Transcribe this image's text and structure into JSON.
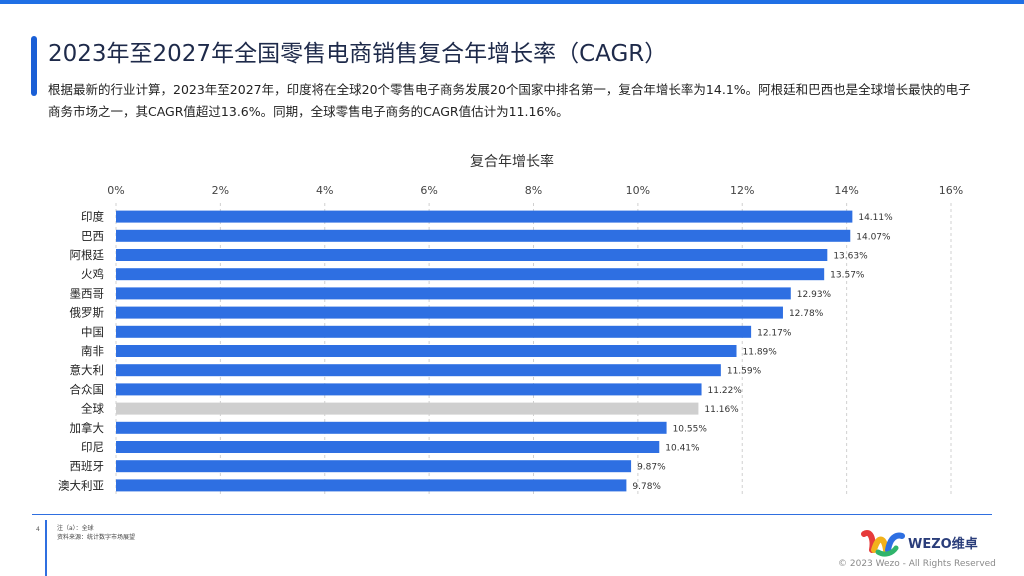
{
  "header": {
    "title": "2023年至2027年全国零售电商销售复合年增长率（CAGR）",
    "description": "根据最新的行业计算，2023年至2027年，印度将在全球20个零售电子商务发展20个国家中排名第一，复合年增长率为14.1%。阿根廷和巴西也是全球增长最快的电子商务市场之一，其CAGR值超过13.6%。同期，全球零售电子商务的CAGR值估计为11.16%。"
  },
  "chart_data": {
    "type": "bar",
    "orientation": "horizontal",
    "title": "复合年增长率",
    "categories": [
      "印度",
      "巴西",
      "阿根廷",
      "火鸡",
      "墨西哥",
      "俄罗斯",
      "中国",
      "南非",
      "意大利",
      "合众国",
      "全球",
      "加拿大",
      "印尼",
      "西班牙",
      "澳大利亚"
    ],
    "values": [
      14.11,
      14.07,
      13.63,
      13.57,
      12.93,
      12.78,
      12.17,
      11.89,
      11.59,
      11.22,
      11.16,
      10.55,
      10.41,
      9.87,
      9.78
    ],
    "value_labels": [
      "14.11%",
      "14.07%",
      "13.63%",
      "13.57%",
      "12.93%",
      "12.78%",
      "12.17%",
      "11.89%",
      "11.59%",
      "11.22%",
      "11.16%",
      "10.55%",
      "10.41%",
      "9.87%",
      "9.78%"
    ],
    "highlight_category": "全球",
    "xlim": [
      0,
      16
    ],
    "xticks": [
      0,
      2,
      4,
      6,
      8,
      10,
      12,
      14,
      16
    ],
    "xtick_labels": [
      "0%",
      "2%",
      "4%",
      "6%",
      "8%",
      "10%",
      "12%",
      "14%",
      "16%"
    ],
    "grid": true,
    "colors": {
      "bar": "#2e6fe2",
      "highlight": "#cfcfcf",
      "grid": "#d0d0d0"
    }
  },
  "footer": {
    "page_number": "4",
    "note": "注（a）：全球",
    "source": "资料来源：统计数字市场展望",
    "logo_text": "WEZO维卓",
    "copyright": "© 2023 Wezo  - All Rights Reserved"
  }
}
